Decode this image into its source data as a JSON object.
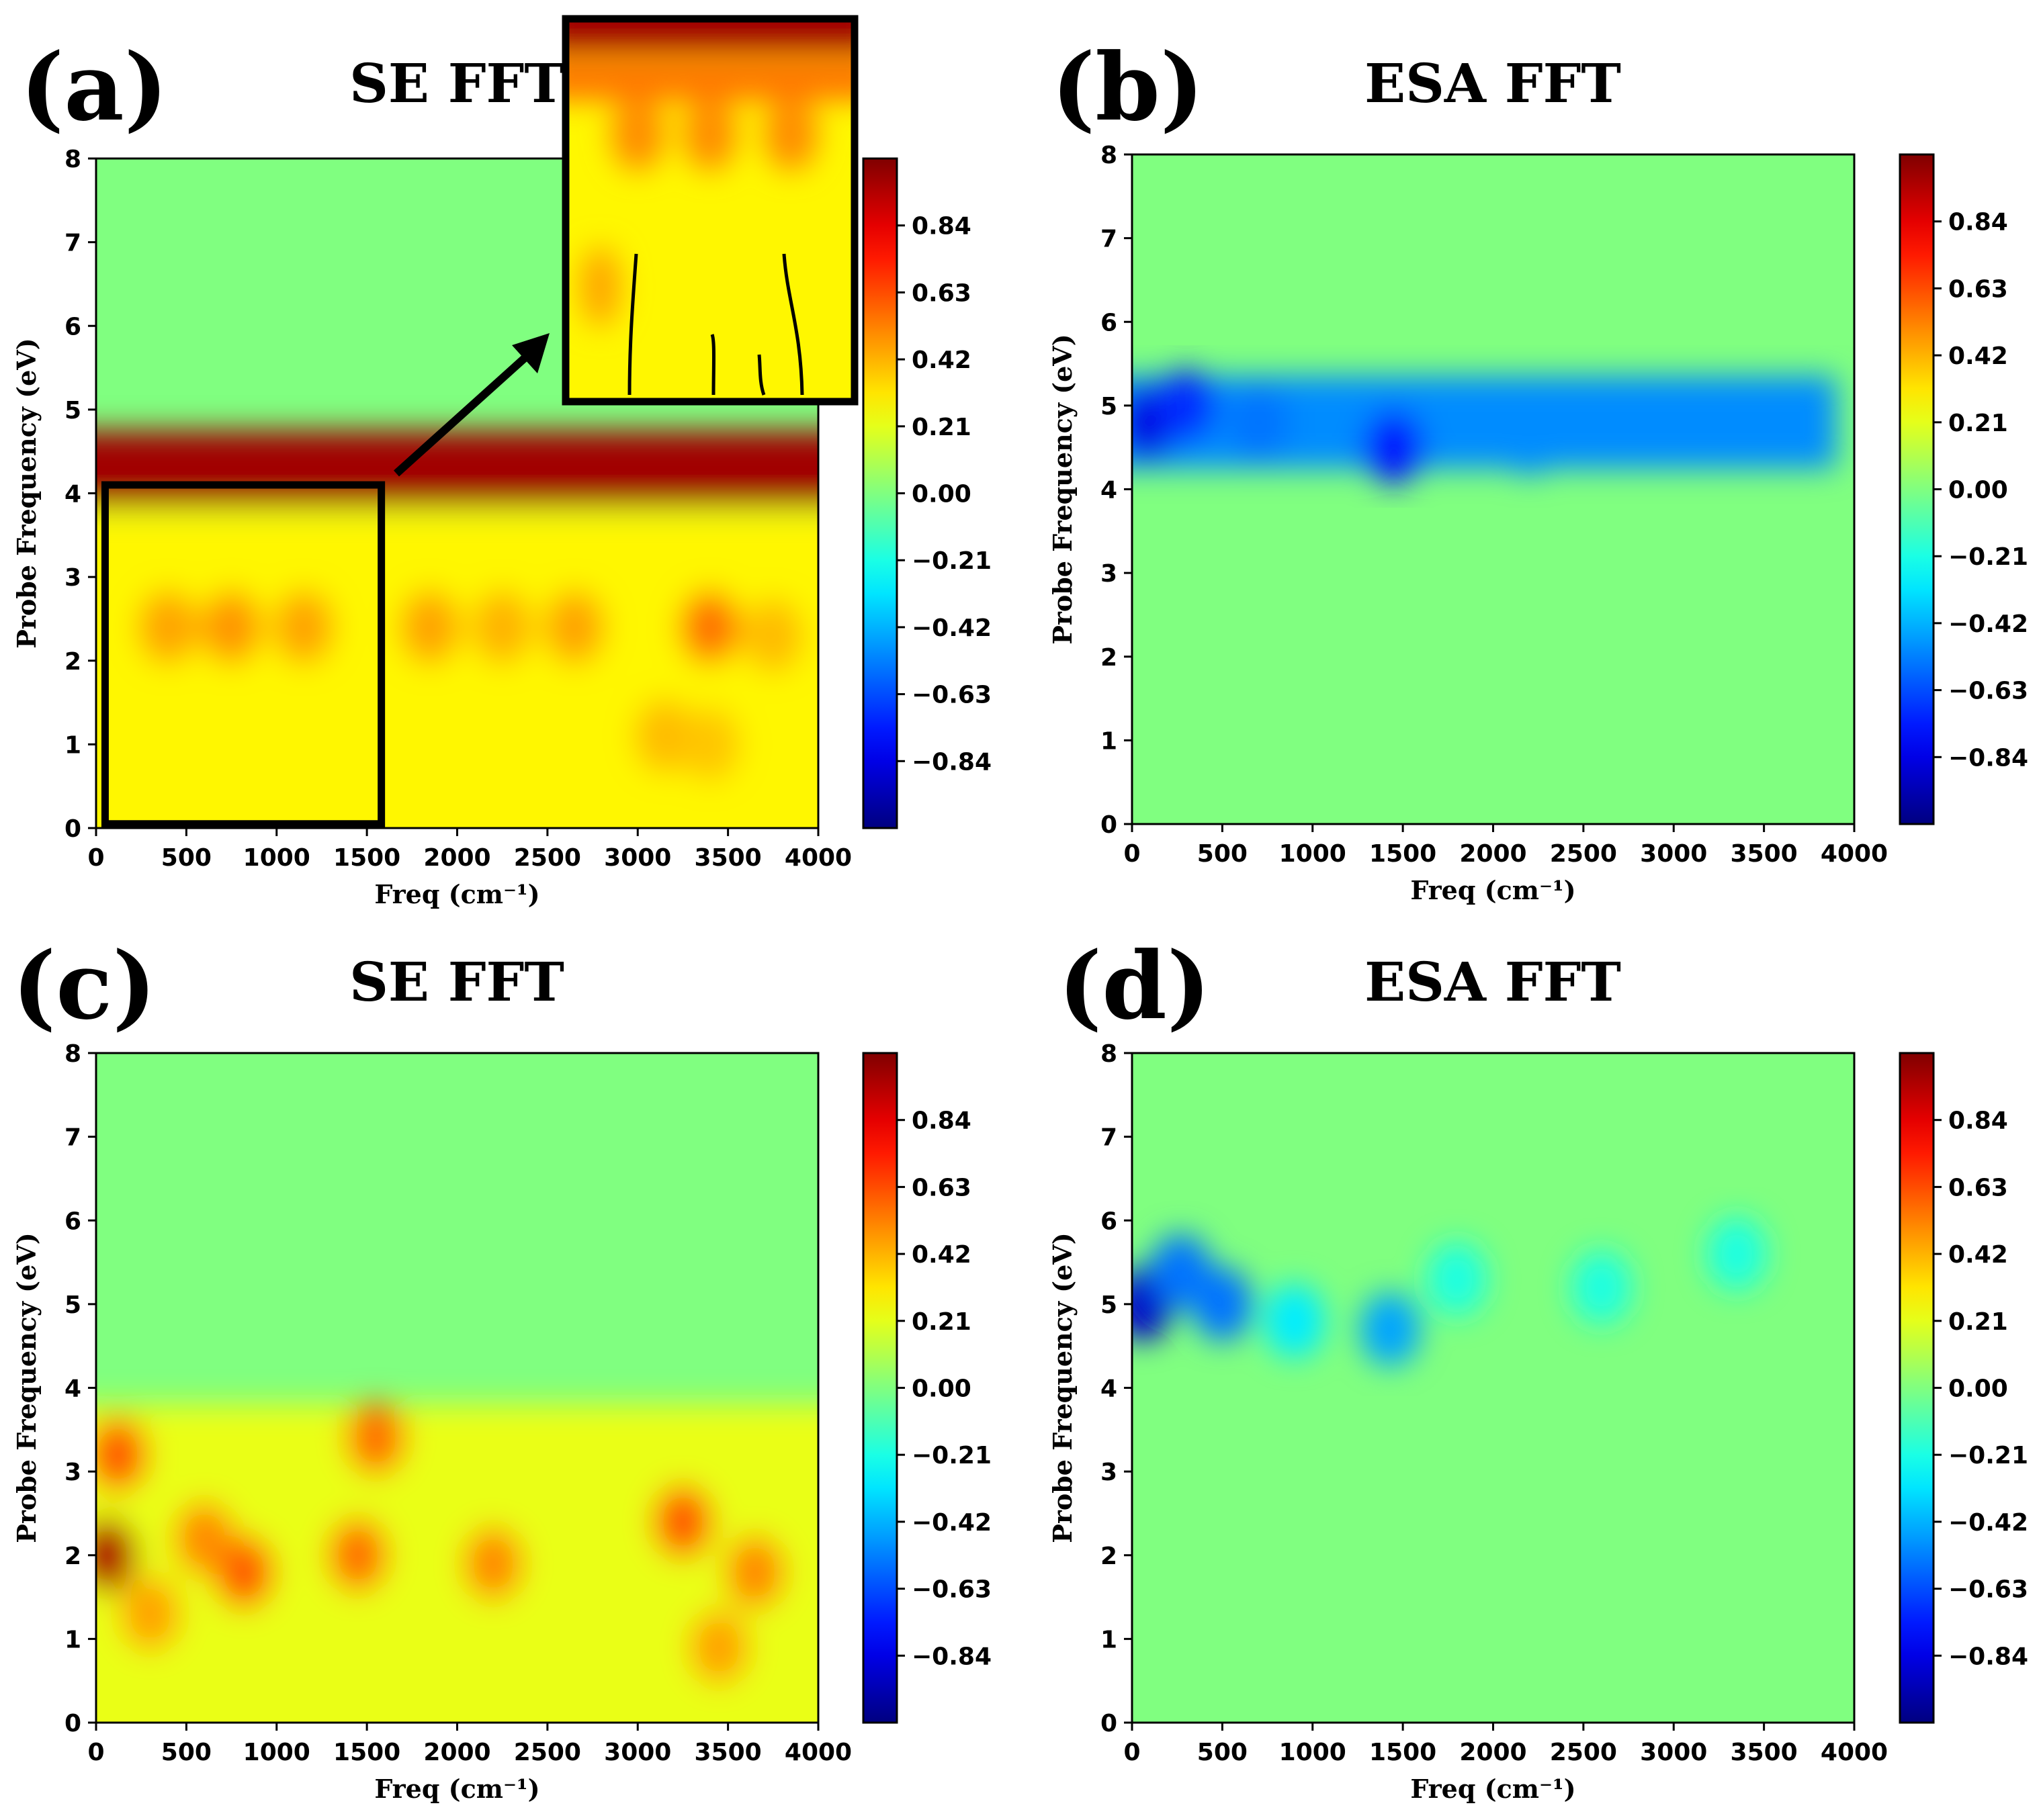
{
  "colormap": "jet",
  "chart_data": [
    {
      "panel": "(a)",
      "title": "SE FFT",
      "type": "heatmap",
      "xlabel": "Freq (cm⁻¹)",
      "ylabel": "Probe Frequency (eV)",
      "xlim": [
        0,
        4000
      ],
      "ylim": [
        0,
        8
      ],
      "xticks": [
        0,
        500,
        1000,
        1500,
        2000,
        2500,
        3000,
        3500,
        4000
      ],
      "yticks": [
        0,
        1,
        2,
        3,
        4,
        5,
        6,
        7,
        8
      ],
      "colorbar_ticks": [
        "0.84",
        "0.63",
        "0.42",
        "0.21",
        "0.00",
        "−0.21",
        "−0.42",
        "−0.63",
        "−0.84"
      ],
      "colorbar_range": [
        -1.05,
        1.05
      ],
      "features": [
        {
          "kind": "band",
          "y": 4.3,
          "width": 0.45,
          "value": 0.98
        },
        {
          "kind": "region",
          "y_range": [
            0,
            3.8
          ],
          "base": 0.28
        },
        {
          "kind": "spot",
          "x": 400,
          "y": 2.4,
          "value": 0.45
        },
        {
          "kind": "spot",
          "x": 750,
          "y": 2.4,
          "value": 0.48
        },
        {
          "kind": "spot",
          "x": 1150,
          "y": 2.4,
          "value": 0.45
        },
        {
          "kind": "spot",
          "x": 1850,
          "y": 2.4,
          "value": 0.45
        },
        {
          "kind": "spot",
          "x": 2250,
          "y": 2.4,
          "value": 0.42
        },
        {
          "kind": "spot",
          "x": 2650,
          "y": 2.4,
          "value": 0.45
        },
        {
          "kind": "spot",
          "x": 3400,
          "y": 2.4,
          "value": 0.55
        },
        {
          "kind": "spot",
          "x": 3750,
          "y": 2.3,
          "value": 0.4
        },
        {
          "kind": "spot",
          "x": 3150,
          "y": 1.1,
          "value": 0.4
        },
        {
          "kind": "spot",
          "x": 3400,
          "y": 1.0,
          "value": 0.38
        }
      ],
      "inset": {
        "x_range": [
          50,
          1580
        ],
        "y_range": [
          0.05,
          4.1
        ]
      }
    },
    {
      "panel": "(b)",
      "title": "ESA FFT",
      "type": "heatmap",
      "xlabel": "Freq (cm⁻¹)",
      "ylabel": "Probe Frequency (eV)",
      "xlim": [
        0,
        4000
      ],
      "ylim": [
        0,
        8
      ],
      "xticks": [
        0,
        500,
        1000,
        1500,
        2000,
        2500,
        3000,
        3500,
        4000
      ],
      "yticks": [
        0,
        1,
        2,
        3,
        4,
        5,
        6,
        7,
        8
      ],
      "colorbar_ticks": [
        "0.84",
        "0.63",
        "0.42",
        "0.21",
        "0.00",
        "−0.21",
        "−0.42",
        "−0.63",
        "−0.84"
      ],
      "colorbar_range": [
        -1.05,
        1.05
      ],
      "features": [
        {
          "kind": "band",
          "y": 4.8,
          "width": 0.55,
          "value": -0.5,
          "x_end": 3900
        },
        {
          "kind": "spot",
          "x": 80,
          "y": 4.8,
          "value": -0.85
        },
        {
          "kind": "spot",
          "x": 300,
          "y": 5.0,
          "value": -0.7
        },
        {
          "kind": "spot",
          "x": 1450,
          "y": 4.5,
          "value": -0.75
        },
        {
          "kind": "spot",
          "x": 700,
          "y": 4.8,
          "value": -0.55
        },
        {
          "kind": "spot",
          "x": 2200,
          "y": 4.6,
          "value": -0.5
        }
      ]
    },
    {
      "panel": "(c)",
      "title": "SE FFT",
      "type": "heatmap",
      "xlabel": "Freq (cm⁻¹)",
      "ylabel": "Probe Frequency (eV)",
      "xlim": [
        0,
        4000
      ],
      "ylim": [
        0,
        8
      ],
      "xticks": [
        0,
        500,
        1000,
        1500,
        2000,
        2500,
        3000,
        3500,
        4000
      ],
      "yticks": [
        0,
        1,
        2,
        3,
        4,
        5,
        6,
        7,
        8
      ],
      "colorbar_ticks": [
        "0.84",
        "0.63",
        "0.42",
        "0.21",
        "0.00",
        "−0.21",
        "−0.42",
        "−0.63",
        "−0.84"
      ],
      "colorbar_range": [
        -1.05,
        1.05
      ],
      "features": [
        {
          "kind": "region",
          "y_range": [
            0,
            3.8
          ],
          "base": 0.22
        },
        {
          "kind": "spot",
          "x": 60,
          "y": 2.0,
          "value": 0.95
        },
        {
          "kind": "spot",
          "x": 120,
          "y": 3.2,
          "value": 0.6
        },
        {
          "kind": "spot",
          "x": 820,
          "y": 1.8,
          "value": 0.6
        },
        {
          "kind": "spot",
          "x": 600,
          "y": 2.2,
          "value": 0.5
        },
        {
          "kind": "spot",
          "x": 1450,
          "y": 2.0,
          "value": 0.55
        },
        {
          "kind": "spot",
          "x": 1550,
          "y": 3.4,
          "value": 0.55
        },
        {
          "kind": "spot",
          "x": 2200,
          "y": 1.9,
          "value": 0.5
        },
        {
          "kind": "spot",
          "x": 3250,
          "y": 2.4,
          "value": 0.6
        },
        {
          "kind": "spot",
          "x": 3650,
          "y": 1.8,
          "value": 0.5
        },
        {
          "kind": "spot",
          "x": 3450,
          "y": 0.9,
          "value": 0.45
        },
        {
          "kind": "spot",
          "x": 300,
          "y": 1.3,
          "value": 0.45
        }
      ]
    },
    {
      "panel": "(d)",
      "title": "ESA FFT",
      "type": "heatmap",
      "xlabel": "Freq (cm⁻¹)",
      "ylabel": "Probe Frequency (eV)",
      "xlim": [
        0,
        4000
      ],
      "ylim": [
        0,
        8
      ],
      "xticks": [
        0,
        500,
        1000,
        1500,
        2000,
        2500,
        3000,
        3500,
        4000
      ],
      "yticks": [
        0,
        1,
        2,
        3,
        4,
        5,
        6,
        7,
        8
      ],
      "colorbar_ticks": [
        "0.84",
        "0.63",
        "0.42",
        "0.21",
        "0.00",
        "−0.21",
        "−0.42",
        "−0.63",
        "−0.84"
      ],
      "colorbar_range": [
        -1.05,
        1.05
      ],
      "features": [
        {
          "kind": "spot",
          "x": 60,
          "y": 5.0,
          "value": -0.9
        },
        {
          "kind": "spot",
          "x": 270,
          "y": 5.4,
          "value": -0.55
        },
        {
          "kind": "spot",
          "x": 500,
          "y": 5.0,
          "value": -0.55
        },
        {
          "kind": "spot",
          "x": 900,
          "y": 4.8,
          "value": -0.3
        },
        {
          "kind": "spot",
          "x": 1430,
          "y": 4.7,
          "value": -0.45
        },
        {
          "kind": "spot",
          "x": 1800,
          "y": 5.3,
          "value": -0.2
        },
        {
          "kind": "spot",
          "x": 2600,
          "y": 5.2,
          "value": -0.2
        },
        {
          "kind": "spot",
          "x": 3350,
          "y": 5.6,
          "value": -0.2
        }
      ]
    }
  ]
}
